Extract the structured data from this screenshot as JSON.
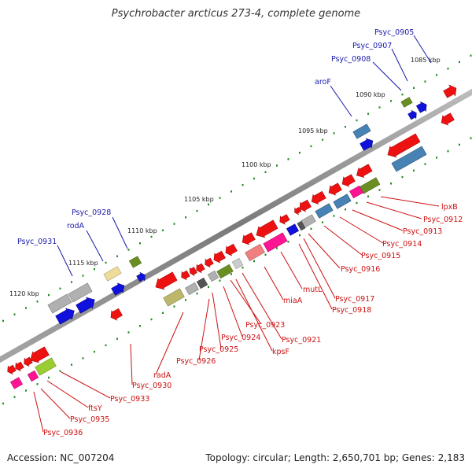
{
  "title": "Psychrobacter arcticus 273-4, complete genome",
  "footer": {
    "accession": "Accession: NC_007204",
    "summary": "Topology: circular; Length: 2,650,701 bp; Genes: 2,183"
  },
  "scale_ticks": [
    "1085 kbp",
    "1090 kbp",
    "1095 kbp",
    "1100 kbp",
    "1105 kbp",
    "1110 kbp",
    "1115 kbp",
    "1120 kbp"
  ],
  "forward_labels": [
    "Psyc_0905",
    "Psyc_0907",
    "Psyc_0908",
    "aroF",
    "Psyc_0928",
    "rodA",
    "Psyc_0931"
  ],
  "reverse_labels": [
    "lpxB",
    "Psyc_0912",
    "Psyc_0913",
    "Psyc_0914",
    "Psyc_0915",
    "Psyc_0916",
    "Psyc_0917",
    "Psyc_0918",
    "mutL",
    "miaA",
    "Psyc_0921",
    "Psyc_0923",
    "kpsF",
    "Psyc_0924",
    "Psyc_0925",
    "Psyc_0926",
    "radA",
    "Psyc_0930",
    "Psyc_0933",
    "ftsY",
    "Psyc_0935",
    "Psyc_0936"
  ],
  "colors": {
    "forward_label": "#1a1aaa",
    "reverse_label": "#cc1111",
    "red": "#ee1111",
    "blue": "#1111dd",
    "steel": "#4682b4",
    "gray": "#b0b0b0",
    "olive": "#6b8e23",
    "khaki": "#bdb76b",
    "pink": "#ff1493",
    "lightpink": "#f08080",
    "lime": "#9acd32",
    "wheat": "#eedd99",
    "backbone": "#888888",
    "dots": "#1f8a1f"
  }
}
